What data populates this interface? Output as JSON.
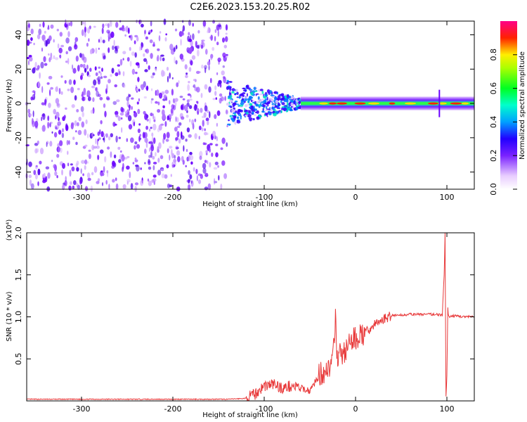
{
  "title": "C2E6.2023.153.20.25.R02",
  "chart_data": [
    {
      "type": "heatmap",
      "title": "C2E6.2023.153.20.25.R02",
      "xlabel": "Height of straight line (km)",
      "ylabel": "Frequency (Hz)",
      "xlim": [
        -360,
        130
      ],
      "ylim": [
        -50,
        48
      ],
      "x_ticks": [
        -300,
        -200,
        -100,
        0,
        100
      ],
      "x_tick_labels": [
        "-300",
        "-200",
        "-100",
        "0",
        "100"
      ],
      "y_ticks": [
        -40,
        -20,
        0,
        20,
        40
      ],
      "y_tick_labels": [
        "-40",
        "-20",
        "0",
        "20",
        "40"
      ],
      "grid": false,
      "colorbar": {
        "label": "Normalized spectral amplitude",
        "range": [
          0,
          1
        ],
        "ticks": [
          0.0,
          0.2,
          0.4,
          0.6,
          0.8
        ],
        "tick_labels": [
          "0.0",
          "0.2",
          "0.4",
          "0.6",
          "0.8"
        ],
        "colors": [
          "#ffffff",
          "#9a4dff",
          "#3300ff",
          "#00ccff",
          "#00ff33",
          "#ffee00",
          "#ff0000",
          "#ff0088"
        ]
      },
      "regions": [
        {
          "x_from": -360,
          "x_to": -140,
          "description_level": 0.15,
          "freq_range": [
            -50,
            48
          ]
        },
        {
          "x_from": -140,
          "x_to": -60,
          "description_level": 0.35,
          "freq_range": [
            -10,
            12
          ]
        },
        {
          "x_from": -60,
          "x_to": 130,
          "description_level": 0.8,
          "freq_range": [
            -3,
            3
          ]
        }
      ]
    },
    {
      "type": "line",
      "xlabel": "Height of straight line (km)",
      "ylabel": "SNR (10 * v/v)",
      "y_multiplier": "(x10⁴)",
      "xlim": [
        -360,
        130
      ],
      "ylim": [
        0,
        2.0
      ],
      "x_ticks": [
        -300,
        -200,
        -100,
        0,
        100
      ],
      "x_tick_labels": [
        "-300",
        "-200",
        "-100",
        "0",
        "100"
      ],
      "y_ticks": [
        0.5,
        1.0,
        1.5,
        2.0
      ],
      "y_tick_labels": [
        "0.5",
        "1.0",
        "1.5",
        "2.0"
      ],
      "grid": false,
      "color": "#e8393a",
      "x": [
        -360,
        -300,
        -200,
        -140,
        -120,
        -110,
        -100,
        -90,
        -80,
        -70,
        -60,
        -50,
        -40,
        -30,
        -25,
        -22,
        -20,
        -15,
        -10,
        -5,
        0,
        10,
        20,
        30,
        40,
        50,
        60,
        70,
        80,
        90,
        95,
        97,
        98,
        99,
        100,
        101,
        102,
        105,
        110,
        120,
        130
      ],
      "y": [
        0.02,
        0.02,
        0.02,
        0.02,
        0.03,
        0.08,
        0.18,
        0.2,
        0.15,
        0.18,
        0.15,
        0.12,
        0.3,
        0.4,
        0.45,
        0.95,
        0.55,
        0.55,
        0.6,
        0.7,
        0.75,
        0.8,
        0.9,
        0.97,
        1.02,
        1.02,
        1.03,
        1.03,
        1.03,
        1.03,
        1.02,
        1.5,
        2.0,
        0.05,
        0.3,
        1.1,
        1.0,
        1.01,
        1.01,
        1.0,
        1.0
      ]
    }
  ]
}
